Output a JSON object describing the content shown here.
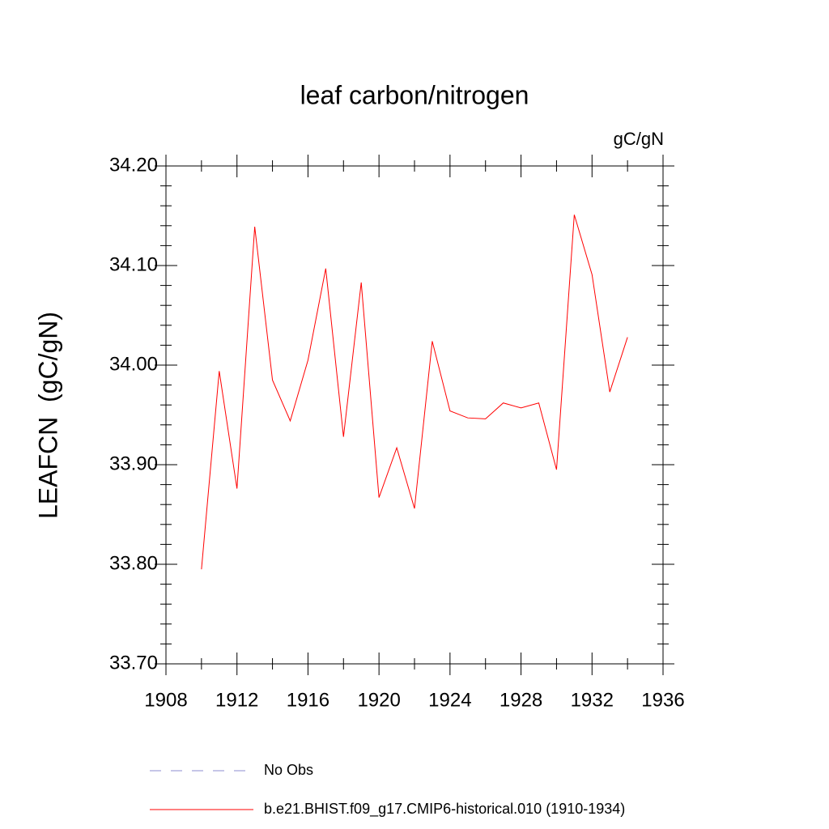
{
  "chart_data": {
    "type": "line",
    "title": "leaf carbon/nitrogen",
    "units": "gC/gN",
    "ylabel": "LEAFCN  (gC/gN)",
    "x": [
      1910,
      1911,
      1912,
      1913,
      1914,
      1915,
      1916,
      1917,
      1918,
      1919,
      1920,
      1921,
      1922,
      1923,
      1924,
      1925,
      1926,
      1927,
      1928,
      1929,
      1930,
      1931,
      1932,
      1933,
      1934
    ],
    "series": [
      {
        "name": "No Obs",
        "color": "#8c8cd0",
        "dashed": true,
        "values": [
          null,
          null,
          null,
          null,
          null,
          null,
          null,
          null,
          null,
          null,
          null,
          null,
          null,
          null,
          null,
          null,
          null,
          null,
          null,
          null,
          null,
          null,
          null,
          null,
          null
        ]
      },
      {
        "name": "b.e21.BHIST.f09_g17.CMIP6-historical.010 (1910-1934)",
        "color": "#ff0000",
        "dashed": false,
        "values": [
          33.795,
          33.994,
          33.876,
          34.139,
          33.985,
          33.944,
          34.005,
          34.097,
          33.928,
          34.083,
          33.867,
          33.917,
          33.856,
          34.024,
          33.954,
          33.947,
          33.946,
          33.962,
          33.957,
          33.962,
          33.895,
          34.151,
          34.091,
          33.973,
          34.028
        ]
      }
    ],
    "xlim": [
      1908,
      1936
    ],
    "xticks": [
      1908,
      1912,
      1916,
      1920,
      1924,
      1928,
      1932,
      1936
    ],
    "ylim": [
      33.7,
      34.2
    ],
    "yticks": [
      {
        "value": 33.7,
        "label": "33.70"
      },
      {
        "value": 33.8,
        "label": "33.80"
      },
      {
        "value": 33.9,
        "label": "33.90"
      },
      {
        "value": 34.0,
        "label": "34.00"
      },
      {
        "value": 34.1,
        "label": "34.10"
      },
      {
        "value": 34.2,
        "label": "34.20"
      }
    ]
  }
}
